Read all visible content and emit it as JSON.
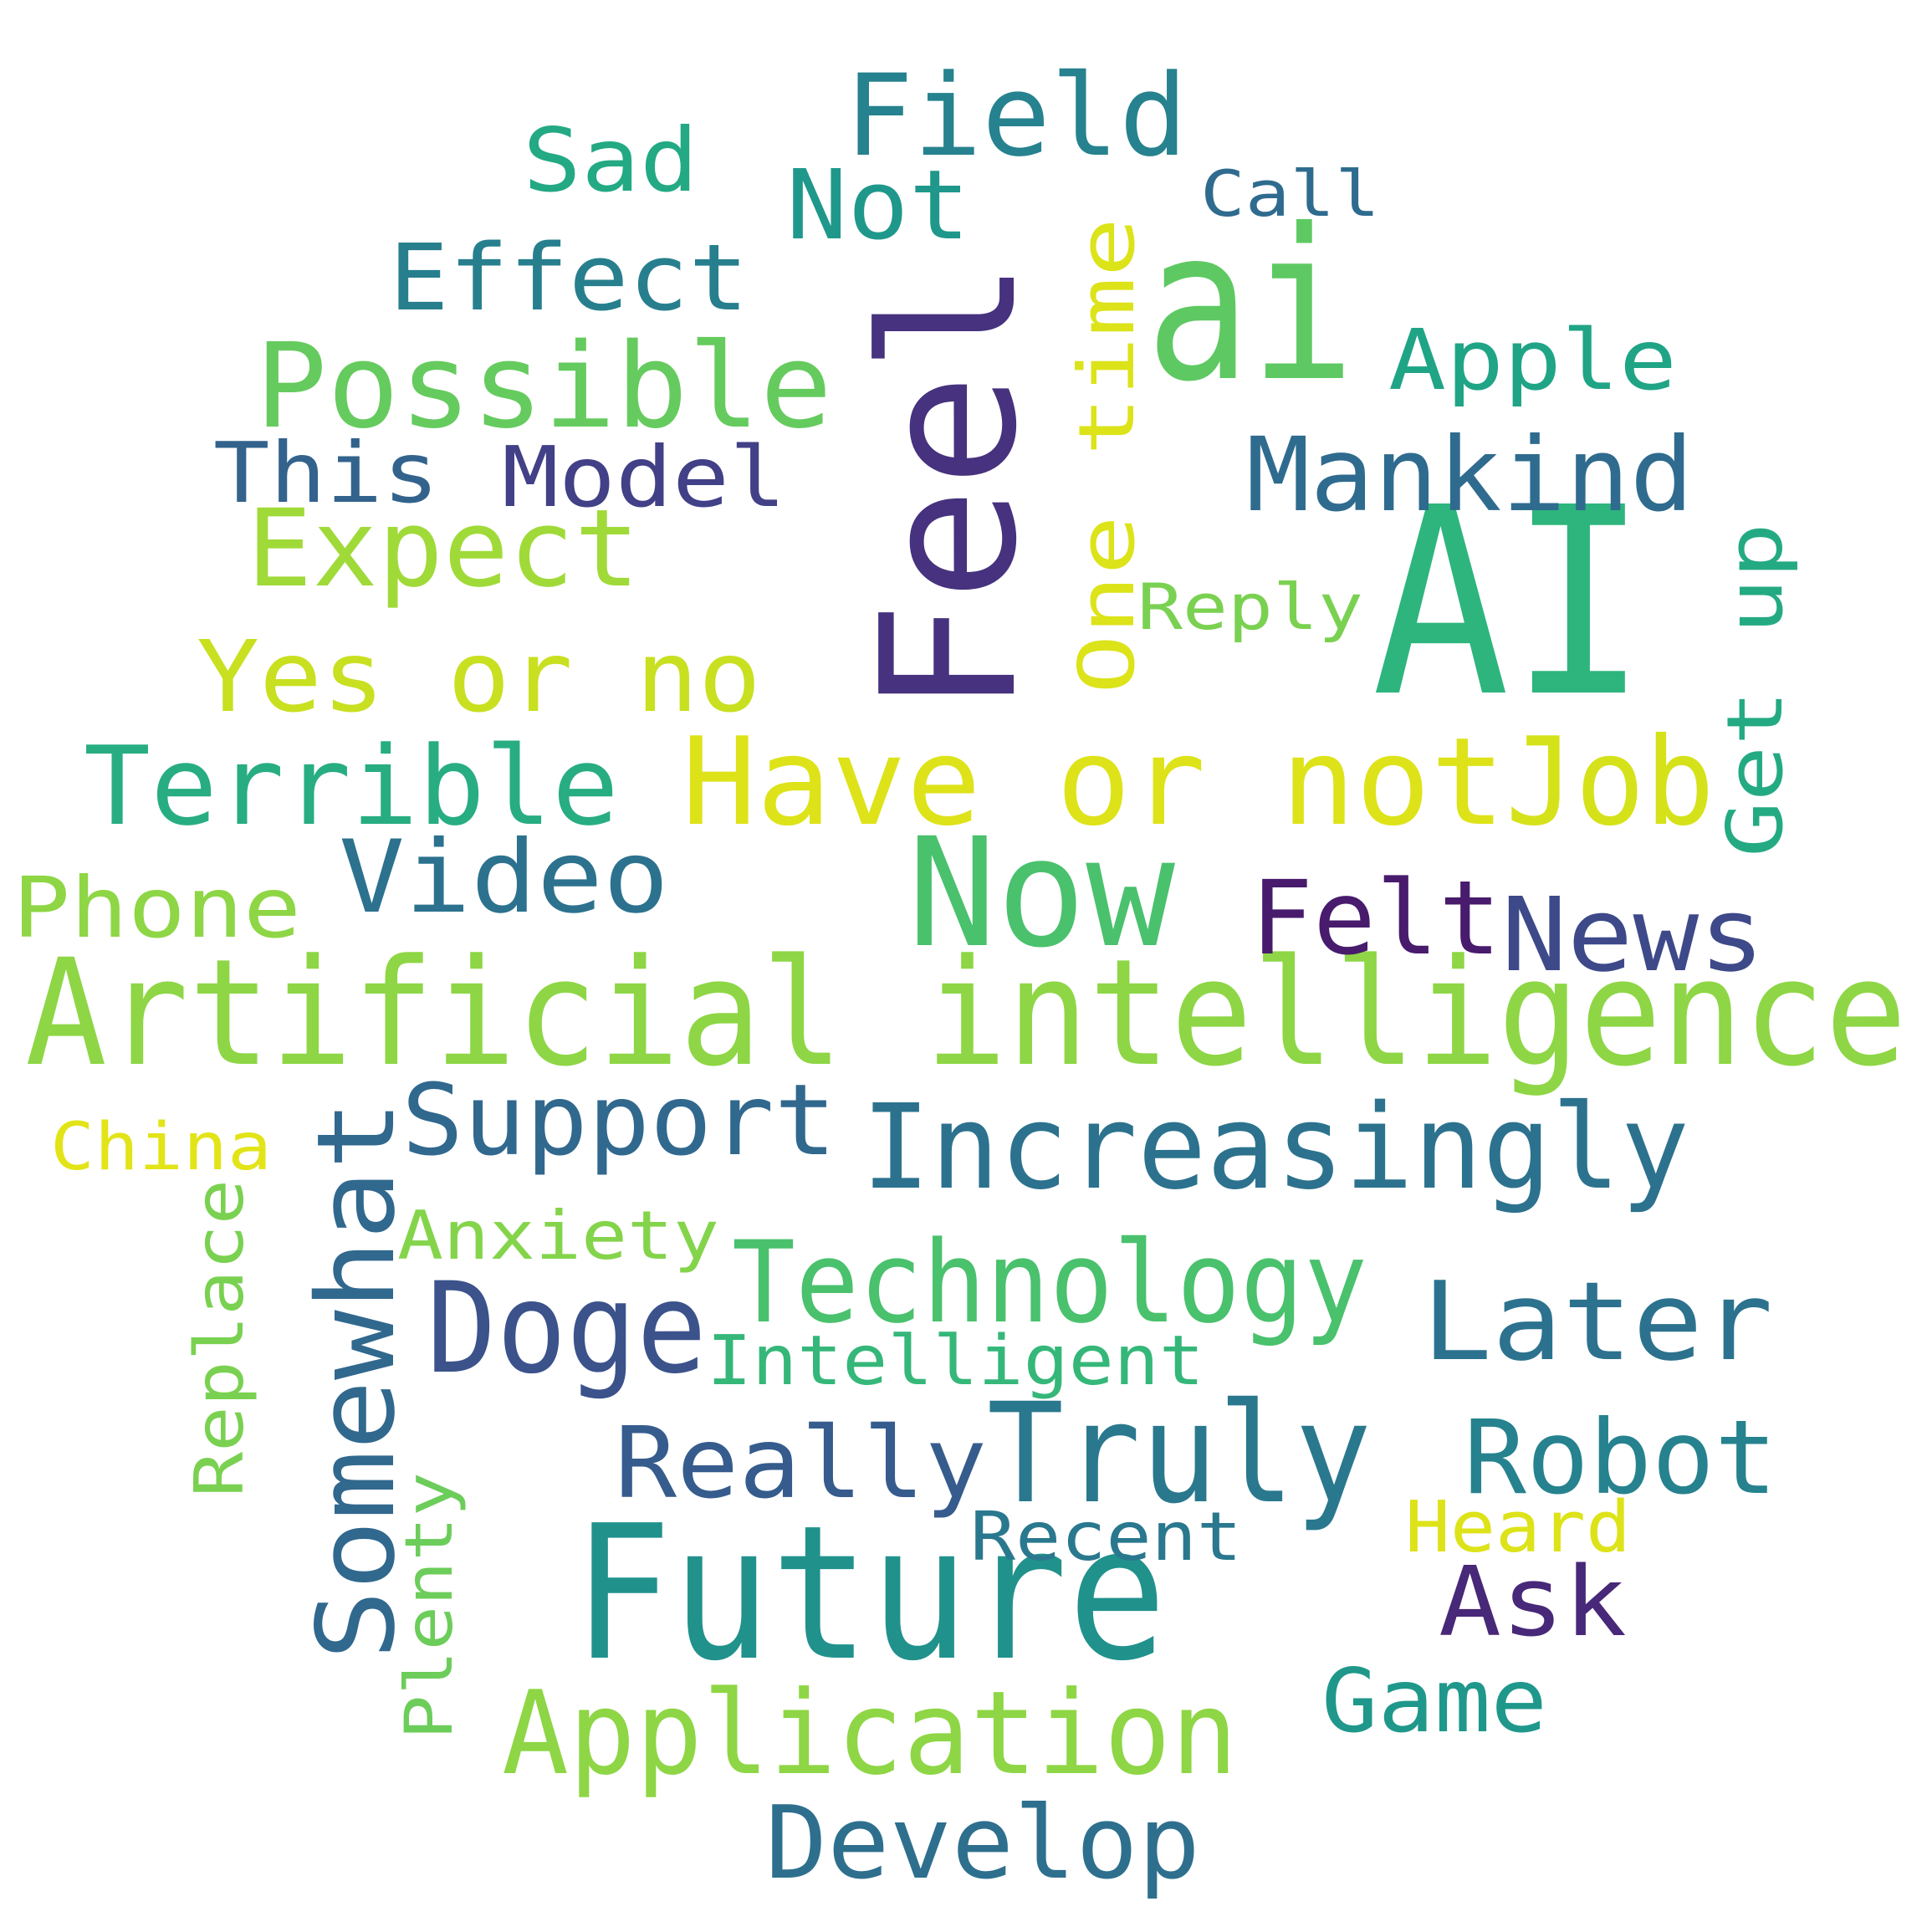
{
  "words": [
    {
      "id": "artificial-intelligence",
      "text": "Artificial intelligence",
      "color": "#8ed645"
    },
    {
      "id": "ai-upper",
      "text": "AI",
      "color": "#2db57d"
    },
    {
      "id": "feel",
      "text": "Feel",
      "color": "#46327e"
    },
    {
      "id": "ai-lower",
      "text": "ai",
      "color": "#5ec962"
    },
    {
      "id": "future",
      "text": "Future",
      "color": "#21918c"
    },
    {
      "id": "now",
      "text": "Now",
      "color": "#4ac16d"
    },
    {
      "id": "have-or-not",
      "text": "Have or not",
      "color": "#dde318"
    },
    {
      "id": "job",
      "text": "Job",
      "color": "#d5e21a"
    },
    {
      "id": "increasingly",
      "text": "Increasingly",
      "color": "#2c728e"
    },
    {
      "id": "truly",
      "text": "Truly",
      "color": "#2a788e"
    },
    {
      "id": "application",
      "text": "Application",
      "color": "#8ed645"
    },
    {
      "id": "technology",
      "text": "Technology",
      "color": "#4ac16d"
    },
    {
      "id": "terrible",
      "text": "Terrible",
      "color": "#27ad81"
    },
    {
      "id": "possible",
      "text": "Possible",
      "color": "#65cb5e"
    },
    {
      "id": "field",
      "text": "Field",
      "color": "#26828e"
    },
    {
      "id": "yes-or-no",
      "text": "Yes or no",
      "color": "#c8e020"
    },
    {
      "id": "expect",
      "text": "Expect",
      "color": "#a0da39"
    },
    {
      "id": "mankind",
      "text": "Mankind",
      "color": "#2f6b8e"
    },
    {
      "id": "doge",
      "text": "Doge",
      "color": "#3b528b"
    },
    {
      "id": "somewhat",
      "text": "Somewhat",
      "color": "#31688e"
    },
    {
      "id": "later",
      "text": "Later",
      "color": "#2c728e"
    },
    {
      "id": "video",
      "text": "Video",
      "color": "#2c728e"
    },
    {
      "id": "support",
      "text": "Support",
      "color": "#31688e"
    },
    {
      "id": "develop",
      "text": "Develop",
      "color": "#2e6f8e"
    },
    {
      "id": "robot",
      "text": "Robot",
      "color": "#26828e"
    },
    {
      "id": "really",
      "text": "Really",
      "color": "#365c8d"
    },
    {
      "id": "news",
      "text": "News",
      "color": "#3e4989"
    },
    {
      "id": "felt",
      "text": "Felt",
      "color": "#481b6d"
    },
    {
      "id": "effect",
      "text": "Effect",
      "color": "#277f8e"
    },
    {
      "id": "not",
      "text": "Not",
      "color": "#1f988b"
    },
    {
      "id": "apple",
      "text": "Apple",
      "color": "#20a486"
    },
    {
      "id": "one-time",
      "text": "One time",
      "color": "#dce319"
    },
    {
      "id": "this",
      "text": "This",
      "color": "#33638d"
    },
    {
      "id": "model",
      "text": "Model",
      "color": "#424086"
    },
    {
      "id": "get-up",
      "text": "Get up",
      "color": "#24aa83"
    },
    {
      "id": "ask",
      "text": "Ask",
      "color": "#482878"
    },
    {
      "id": "game",
      "text": "Game",
      "color": "#1f988b"
    },
    {
      "id": "sad",
      "text": "Sad",
      "color": "#23a983"
    },
    {
      "id": "phone",
      "text": "Phone",
      "color": "#8ed645"
    },
    {
      "id": "intelligent",
      "text": "Intelligent",
      "color": "#35b779"
    },
    {
      "id": "anxiety",
      "text": "Anxiety",
      "color": "#84d44b"
    },
    {
      "id": "replace",
      "text": "Replace",
      "color": "#7ad151"
    },
    {
      "id": "plenty",
      "text": "Plenty",
      "color": "#6ccd5a"
    },
    {
      "id": "recent",
      "text": "Recent",
      "color": "#2a788e"
    },
    {
      "id": "heard",
      "text": "Heard",
      "color": "#dde318"
    },
    {
      "id": "reply",
      "text": "Reply",
      "color": "#7ad151"
    },
    {
      "id": "call",
      "text": "Call",
      "color": "#2f6b8e"
    },
    {
      "id": "china",
      "text": "China",
      "color": "#e2e418"
    }
  ]
}
